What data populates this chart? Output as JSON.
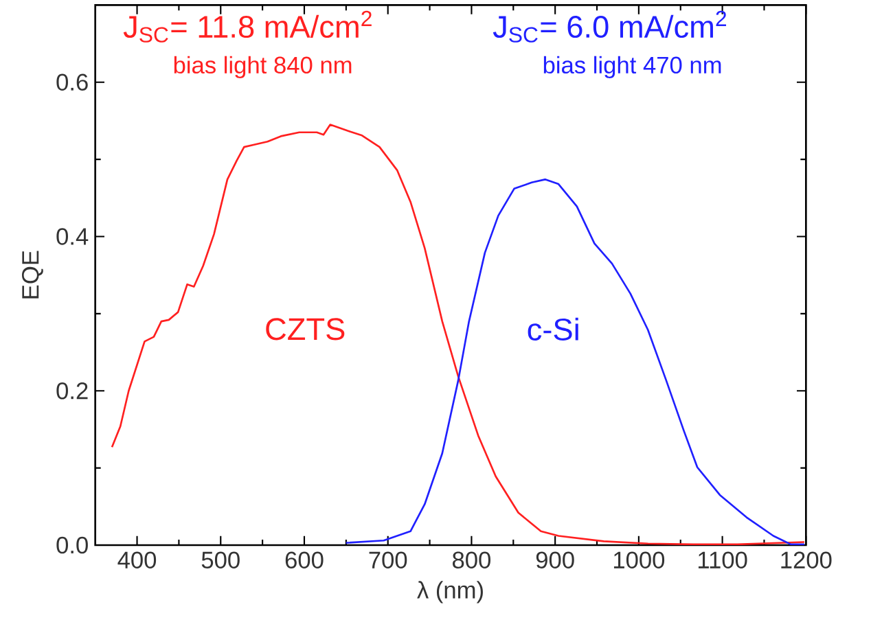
{
  "chart_data": {
    "type": "line",
    "xlabel": "λ (nm)",
    "ylabel": "EQE",
    "xlim": [
      350,
      1200
    ],
    "ylim": [
      0,
      0.7
    ],
    "xticks": [
      400,
      500,
      600,
      700,
      800,
      900,
      1000,
      1100,
      1200
    ],
    "yticks": [
      {
        "value": 0,
        "label": "0.0"
      },
      {
        "value": 0.2,
        "label": "0.2"
      },
      {
        "value": 0.4,
        "label": "0.4"
      },
      {
        "value": 0.6,
        "label": "0.6"
      }
    ],
    "grid": false,
    "legend": false,
    "marker": "none",
    "line_style": "solid",
    "annotations": [
      "J$_{SC}$= 11.8 mA/cm$^{2}$",
      "bias light 840 nm",
      "J$_{SC}$= 6.0 mA/cm$^{2}$",
      "bias light 470 nm"
    ],
    "series": [
      {
        "name": "CZTS",
        "color": "#ff2020",
        "x": [
          370,
          380,
          390,
          409,
          420,
          429,
          438,
          449,
          460,
          468,
          479,
          492,
          508,
          519,
          528,
          540,
          556,
          572,
          594,
          615,
          623,
          631,
          652,
          669,
          690,
          711,
          727,
          744,
          765,
          784,
          808,
          829,
          856,
          883,
          904,
          958,
          1011,
          1065,
          1118,
          1198
        ],
        "values": [
          0.127,
          0.154,
          0.2,
          0.264,
          0.27,
          0.29,
          0.292,
          0.302,
          0.338,
          0.335,
          0.362,
          0.403,
          0.474,
          0.498,
          0.516,
          0.519,
          0.523,
          0.53,
          0.535,
          0.535,
          0.532,
          0.545,
          0.537,
          0.531,
          0.516,
          0.486,
          0.445,
          0.385,
          0.29,
          0.219,
          0.142,
          0.089,
          0.042,
          0.018,
          0.012,
          0.005,
          0.002,
          0.001,
          0.001,
          0.004
        ]
      },
      {
        "name": "c-Si",
        "color": "#2020ff",
        "x": [
          650,
          695,
          727,
          744,
          765,
          784,
          797,
          816,
          832,
          851,
          872,
          888,
          904,
          926,
          947,
          968,
          990,
          1011,
          1033,
          1054,
          1070,
          1097,
          1129,
          1161,
          1182,
          1198
        ],
        "values": [
          0.003,
          0.006,
          0.018,
          0.053,
          0.119,
          0.213,
          0.29,
          0.379,
          0.427,
          0.462,
          0.47,
          0.474,
          0.468,
          0.439,
          0.391,
          0.365,
          0.326,
          0.279,
          0.213,
          0.148,
          0.101,
          0.065,
          0.036,
          0.012,
          0.001,
          0.001
        ]
      }
    ]
  }
}
